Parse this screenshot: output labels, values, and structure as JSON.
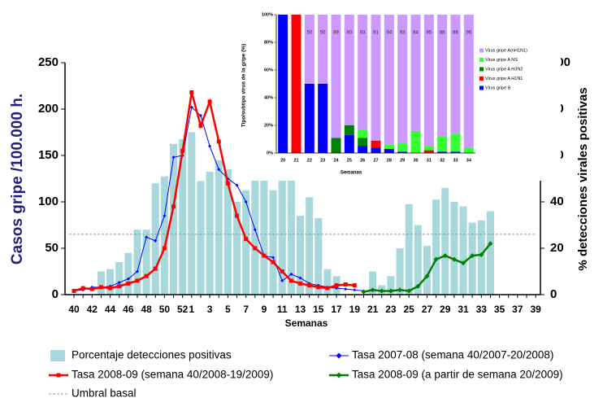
{
  "chart_data": [
    {
      "type": "bar-line",
      "x_label": "Semanas",
      "y_label": "Casos gripe /100.000 h.",
      "y2_label": "% detecciones virales positivas",
      "categories": [
        "40",
        null,
        "42",
        null,
        "44",
        null,
        "46",
        null,
        "48",
        null,
        "50",
        null,
        "52",
        "1",
        null,
        "3",
        null,
        "5",
        null,
        "7",
        null,
        "9",
        null,
        "11",
        null,
        "13",
        null,
        "15",
        null,
        "17",
        null,
        "19",
        null,
        "21",
        null,
        "23",
        null,
        "25",
        null,
        "27",
        null,
        "29",
        null,
        "31",
        null,
        "33",
        null,
        "35",
        null,
        "37",
        null,
        "39"
      ],
      "ylim": [
        0,
        250
      ],
      "yticks": [
        0,
        50,
        100,
        150,
        200,
        250
      ],
      "y2lim": [
        0,
        100
      ],
      "y2ticks": [
        0,
        20,
        40,
        60,
        80,
        100
      ],
      "series": [
        {
          "name": "Porcentaje detecciones positivas",
          "type": "bar",
          "axis": "y2",
          "color": "#a8d8dc",
          "values": [
            null,
            null,
            null,
            10,
            11,
            14,
            18,
            28,
            28,
            48,
            51,
            65,
            67,
            70,
            49,
            53,
            58,
            54,
            40,
            45,
            51,
            58,
            45,
            51,
            50,
            34,
            42,
            33,
            11,
            8,
            null,
            null,
            null,
            10,
            4,
            8,
            20,
            39,
            30,
            21,
            41,
            46,
            40,
            38,
            31,
            32,
            36,
            null,
            null,
            null,
            null,
            null
          ]
        },
        {
          "name": "Tasa 2007-08 (semana 40/2007-20/2008)",
          "type": "line",
          "marker": "diamond",
          "color": "#0000ff",
          "values": [
            4,
            5,
            8,
            8,
            9,
            13,
            17,
            25,
            62,
            58,
            85,
            148,
            150,
            202,
            193,
            160,
            135,
            125,
            118,
            100,
            70,
            42,
            40,
            15,
            22,
            18,
            12,
            10,
            8,
            7,
            6,
            5,
            4,
            null,
            null,
            null,
            null,
            null,
            null,
            null,
            null,
            null,
            null,
            null,
            null,
            null,
            null,
            null,
            null,
            null,
            null,
            null
          ]
        },
        {
          "name": "Tasa 2008-09 (semana 40/2008-19/2009)",
          "type": "line",
          "marker": "square",
          "color": "#ff0000",
          "values": [
            4,
            7,
            6,
            8,
            7,
            9,
            12,
            15,
            20,
            28,
            50,
            95,
            155,
            218,
            182,
            208,
            165,
            120,
            85,
            60,
            50,
            42,
            35,
            25,
            15,
            12,
            10,
            8,
            7,
            10,
            11,
            10,
            null,
            null,
            null,
            null,
            null,
            null,
            null,
            null,
            null,
            null,
            null,
            null,
            null,
            null,
            null,
            null,
            null,
            null,
            null,
            null
          ]
        },
        {
          "name": "Tasa 2008-09 (a partir de semana 20/2009)",
          "type": "line",
          "marker": "diamond",
          "color": "#008000",
          "values": [
            null,
            null,
            null,
            null,
            null,
            null,
            null,
            null,
            null,
            null,
            null,
            null,
            null,
            null,
            null,
            null,
            null,
            null,
            null,
            null,
            null,
            null,
            null,
            null,
            null,
            null,
            null,
            null,
            null,
            null,
            null,
            null,
            3,
            5,
            4,
            4,
            5,
            4,
            9,
            20,
            38,
            42,
            38,
            34,
            42,
            43,
            55,
            null,
            null,
            null,
            null,
            null
          ]
        }
      ],
      "threshold": {
        "name": "Umbral basal",
        "value": 65,
        "color": "#999999"
      }
    },
    {
      "type": "stacked-bar",
      "y_label": "Tipo/subtipo virus de la gripe (%)",
      "x_label": "Semanas",
      "categories": [
        "20",
        "21",
        "22",
        "23",
        "24",
        "25",
        "26",
        "27",
        "28",
        "29",
        "30",
        "31",
        "32",
        "33",
        "34"
      ],
      "ylim": [
        0,
        100
      ],
      "yticks": [
        {
          "value": 0,
          "label": "0%"
        },
        {
          "value": 20,
          "label": "20%"
        },
        {
          "value": 40,
          "label": "40%"
        },
        {
          "value": 60,
          "label": "60%"
        },
        {
          "value": 80,
          "label": "80%"
        },
        {
          "value": 100,
          "label": "100%"
        }
      ],
      "series": [
        {
          "name": "Virus gripe B",
          "color": "#0000ff",
          "values": [
            100,
            0,
            50,
            50,
            0,
            13,
            5,
            4,
            3,
            1,
            0,
            0,
            1,
            1,
            0
          ]
        },
        {
          "name": "Virus gripe A H1N1",
          "color": "#ff0000",
          "values": [
            0,
            100,
            0,
            0,
            0,
            0,
            0,
            5,
            0,
            0,
            0,
            2,
            0,
            0,
            0
          ]
        },
        {
          "name": "Virus gripe A H3N2",
          "color": "#008000",
          "values": [
            0,
            0,
            0,
            0,
            11,
            7,
            6,
            0,
            0,
            0,
            0,
            0,
            0,
            0,
            0
          ]
        },
        {
          "name": "Virus gripe A NS",
          "color": "#33ff33",
          "values": [
            0,
            0,
            0,
            0,
            0,
            0,
            6,
            0,
            3,
            6,
            16,
            3,
            11,
            13,
            4
          ]
        },
        {
          "name": "Virus gripe A(nH1N1)",
          "color": "#cc99ff",
          "values": [
            0,
            0,
            50,
            50,
            89,
            80,
            83,
            91,
            94,
            93,
            84,
            95,
            88,
            86,
            96
          ],
          "data_labels": true
        }
      ]
    }
  ]
}
